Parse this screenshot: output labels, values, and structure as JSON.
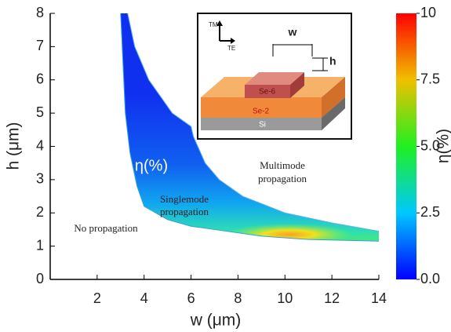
{
  "chart_data": {
    "type": "contour",
    "x_label": "w (μm)",
    "y_label": "h (μm)",
    "xlim": [
      0,
      14
    ],
    "xticks": [
      2,
      4,
      6,
      8,
      10,
      12,
      14
    ],
    "ylim": [
      0,
      8
    ],
    "yticks": [
      0,
      1,
      2,
      3,
      4,
      5,
      6,
      7,
      8
    ],
    "lower_boundary": {
      "x": [
        3.0,
        3.1,
        3.2,
        3.4,
        3.7,
        4.0,
        5.0,
        6.0,
        7.0,
        9.0,
        11.0,
        14.0
      ],
      "y": [
        8,
        6.5,
        5,
        3.8,
        2.8,
        2.2,
        1.8,
        1.6,
        1.5,
        1.3,
        1.2,
        1.15
      ]
    },
    "upper_boundary": {
      "x": [
        3.3,
        3.6,
        4.2,
        5.2,
        6.0,
        6.1,
        6.6,
        7.2,
        8.2,
        10.0,
        12.0,
        14.0
      ],
      "y": [
        8,
        7,
        6,
        5,
        4.6,
        4.3,
        3.5,
        3.0,
        2.5,
        2.0,
        1.7,
        1.45
      ]
    },
    "colorbar": {
      "label": "η(%)",
      "lim": [
        0,
        10
      ],
      "ticks": [
        {
          "value": 0,
          "label": "0.0"
        },
        {
          "value": 2.5,
          "label": "2.5"
        },
        {
          "value": 5,
          "label": "5.0"
        },
        {
          "value": 7.5,
          "label": "7.5"
        },
        10
      ]
    },
    "annotations": {
      "eta": "η(%)",
      "singlemode": [
        "Singlemode",
        "propagation"
      ],
      "multimode": [
        "Multimode",
        "propagation"
      ],
      "none": "No propagation"
    },
    "inset": {
      "tm": "TM",
      "te": "TE",
      "w": "w",
      "h": "h",
      "top_layer": "Se-6",
      "middle_layer": "Se-2",
      "substrate": "Si"
    }
  }
}
